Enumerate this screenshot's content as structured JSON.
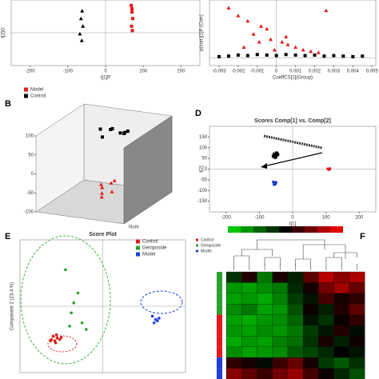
{
  "chart_data": [
    {
      "type": "scatter",
      "xlabel": "t[1]P",
      "ylabel": "t[2]O",
      "xlim": [
        -250,
        250
      ],
      "ylim": [
        -60,
        60
      ],
      "xticks": [
        -200,
        -100,
        0,
        100,
        200
      ],
      "series": [
        {
          "name": "Model",
          "color": "#e41a1c",
          "marker": "square",
          "x": [
            68,
            70,
            72,
            69,
            71,
            70
          ],
          "values": [
            50,
            38,
            26,
            12,
            4,
            44
          ]
        },
        {
          "name": "Control",
          "color": "#000000",
          "marker": "triangle",
          "x": [
            -62,
            -65,
            -60,
            -68,
            -63
          ],
          "values": [
            40,
            26,
            12,
            -2,
            -14
          ]
        }
      ]
    },
    {
      "type": "scatter",
      "xlabel": "CoeffCS[1](Group)",
      "ylabel": "p(corr)[1]P (Corr)",
      "xlim": [
        -0.0035,
        0.0052
      ],
      "ylim": [
        -0.15,
        1.1
      ],
      "xticks": [
        -0.003,
        -0.002,
        -0.001,
        0,
        0.001,
        0.002,
        0.003,
        0.004,
        0.005
      ],
      "series": [
        {
          "name": "Model",
          "color": "#e41a1c",
          "marker": "triangle",
          "x": [
            -0.0005,
            -0.0008,
            -0.0012,
            -0.0015,
            -0.002,
            -0.0003,
            0.0003,
            0.0006,
            0.001,
            0.0014,
            0.0018,
            -0.0025,
            0.0026,
            -0.0017,
            -0.0009,
            0.0005,
            0.0022,
            -0.0001
          ],
          "values": [
            0.55,
            0.6,
            0.45,
            0.7,
            0.8,
            0.35,
            0.3,
            0.25,
            0.2,
            0.15,
            0.12,
            0.95,
            0.9,
            0.2,
            0.3,
            0.4,
            0.1,
            0.15
          ]
        },
        {
          "name": "Control",
          "color": "#000000",
          "marker": "square",
          "x": [
            -0.003,
            -0.0025,
            -0.002,
            -0.0015,
            -0.001,
            -0.0005,
            0,
            0.0005,
            0.001,
            0.0015,
            0.002,
            0.0025,
            0.003,
            0.0035,
            0.004,
            0.0045
          ],
          "values": [
            0.02,
            0.03,
            0.05,
            0.04,
            0.06,
            0.05,
            0.04,
            0.06,
            0.05,
            0.04,
            0.05,
            0.03,
            0.04,
            0.03,
            0.02,
            0.03
          ]
        }
      ]
    },
    {
      "type": "scatter3d",
      "label": "B",
      "zlabel": "Num",
      "xlim": [
        -20,
        20
      ],
      "ylim": [
        -100,
        100
      ],
      "zlim": [
        -100,
        100
      ],
      "zticks": [
        -100,
        -50,
        0,
        50,
        100
      ],
      "series": [
        {
          "color": "#000000",
          "marker": "square",
          "x": [
            -6,
            -3,
            0,
            3,
            6,
            -4,
            2,
            5
          ],
          "y": [
            40,
            55,
            35,
            60,
            45,
            30,
            50,
            38
          ],
          "values": [
            70,
            65,
            78,
            60,
            72,
            55,
            62,
            68
          ]
        },
        {
          "color": "#e41a1c",
          "marker": "triangle",
          "x": [
            2,
            4,
            6,
            8,
            5,
            3,
            7
          ],
          "y": [
            -30,
            -45,
            -25,
            -40,
            -55,
            -35,
            -20
          ],
          "values": [
            -40,
            -55,
            -35,
            -50,
            -60,
            -45,
            -30
          ]
        }
      ]
    },
    {
      "type": "scatter",
      "label": "D",
      "title": "Scores Comp[1] vs. Comp[2]",
      "xlabel": "t[1]",
      "ylabel": "t[2]",
      "xlim": [
        -250,
        250
      ],
      "ylim": [
        -200,
        200
      ],
      "xticks": [
        -200,
        -100,
        0,
        100,
        200
      ],
      "yticks": [
        -150,
        -100,
        -50,
        0,
        50,
        100,
        150
      ],
      "series": [
        {
          "color": "#000000",
          "marker": "square",
          "x": [
            -55,
            -50,
            -48,
            -52,
            -45,
            -58
          ],
          "values": [
            70,
            62,
            75,
            55,
            68,
            60
          ]
        },
        {
          "color": "#e41a1c",
          "marker": "circle",
          "x": [
            108,
            112,
            110,
            106
          ],
          "values": [
            0,
            2,
            -2,
            1
          ]
        },
        {
          "color": "#1f3fd6",
          "marker": "circle",
          "x": [
            -58,
            -55,
            -52,
            -50,
            -56,
            -53
          ],
          "values": [
            -60,
            -65,
            -70,
            -62,
            -72,
            -68
          ]
        }
      ]
    },
    {
      "type": "scatter",
      "label": "E",
      "title": "Score Plot",
      "ylabel": "Component 2 (23.4 %)",
      "xlim": [
        -1,
        1
      ],
      "ylim": [
        -1,
        1
      ],
      "series": [
        {
          "name": "Control",
          "color": "#e41a1c",
          "marker": "circle",
          "x": [
            -0.62,
            -0.58,
            -0.55,
            -0.6,
            -0.52,
            -0.57,
            -0.63,
            -0.5,
            -0.56
          ],
          "values": [
            -0.5,
            -0.52,
            -0.48,
            -0.45,
            -0.5,
            -0.55,
            -0.52,
            -0.47,
            -0.43
          ]
        },
        {
          "name": "Geniposide",
          "color": "#2ca02c",
          "marker": "circle",
          "x": [
            -0.45,
            -0.3,
            -0.38,
            -0.25,
            -0.4,
            -0.35,
            -0.2
          ],
          "values": [
            0.55,
            0.2,
            -0.1,
            -0.25,
            -0.3,
            0.05,
            -0.35
          ]
        },
        {
          "name": "Model",
          "color": "#1f3fd6",
          "marker": "circle",
          "x": [
            0.6,
            0.64,
            0.68,
            0.62,
            0.66
          ],
          "values": [
            -0.15,
            -0.2,
            -0.18,
            -0.25,
            -0.22
          ]
        }
      ]
    },
    {
      "type": "heatmap",
      "label": "F",
      "legend": [
        {
          "name": "Control",
          "color": "#e41a1c"
        },
        {
          "name": "Geniposide",
          "color": "#2ca02c"
        },
        {
          "name": "Model",
          "color": "#1f3fd6"
        }
      ],
      "clim": [
        -2,
        2
      ],
      "row_colors": [
        "#2ca02c",
        "#2ca02c",
        "#2ca02c",
        "#2ca02c",
        "#e41a1c",
        "#e41a1c",
        "#e41a1c",
        "#e41a1c",
        "#1f3fd6",
        "#1f3fd6"
      ],
      "matrix": [
        [
          -0.5,
          0.3,
          -1.2,
          0.2,
          -0.3,
          0.8,
          1.6,
          1.2,
          1.5
        ],
        [
          -1.5,
          -1.6,
          -1.4,
          -1.2,
          -0.4,
          0.2,
          1.0,
          1.4,
          0.9
        ],
        [
          -1.6,
          -1.5,
          -1.7,
          -1.3,
          -0.6,
          -0.2,
          0.6,
          0.2,
          0.4
        ],
        [
          -1.4,
          -1.2,
          -1.6,
          -1.5,
          -0.8,
          0.1,
          -0.3,
          0.3,
          0.8
        ],
        [
          -1.6,
          -1.7,
          -1.5,
          -1.4,
          -1.0,
          -0.2,
          -0.5,
          0.1,
          0.4
        ],
        [
          -1.5,
          -1.6,
          -1.4,
          -1.5,
          -1.2,
          -0.6,
          -0.2,
          0.3,
          -0.1
        ],
        [
          -1.7,
          -1.5,
          -1.6,
          -1.3,
          -1.1,
          -0.5,
          0.2,
          -0.3,
          0.1
        ],
        [
          -1.4,
          -1.6,
          -1.5,
          -1.4,
          -0.9,
          -0.7,
          -0.4,
          0.0,
          -0.2
        ],
        [
          0.4,
          0.2,
          -0.1,
          0.5,
          0.9,
          0.2,
          -0.6,
          -0.9,
          -0.5
        ],
        [
          1.2,
          0.8,
          0.5,
          1.0,
          1.3,
          0.6,
          0.1,
          -0.4,
          -0.8
        ]
      ]
    }
  ]
}
